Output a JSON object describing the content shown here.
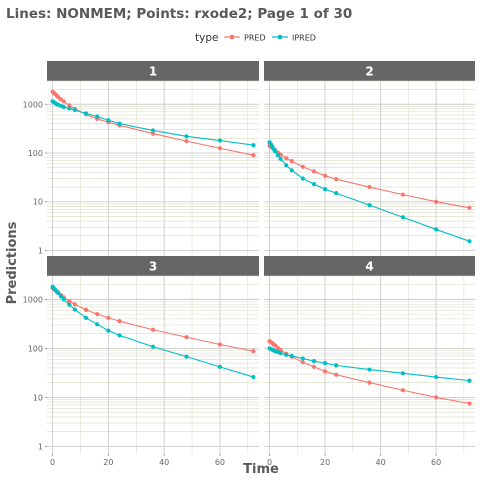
{
  "colors": {
    "strip_bg": "#666666",
    "panel_bg": "#ffffff",
    "grid_major": "#cccccc",
    "grid_minor": "#d8dcc4",
    "pred": "#F8766D",
    "ipred": "#00BFC4",
    "title": "#595959"
  },
  "chart_data": {
    "type": "line",
    "title": "Lines: NONMEM; Points: rxode2; Page 1 of 30",
    "xlabel": "Time",
    "ylabel": "Predictions",
    "y_scale": "log10",
    "xlim": [
      -2,
      74
    ],
    "ylim": [
      0.7,
      3000
    ],
    "x_ticks": [
      0,
      20,
      40,
      60
    ],
    "y_ticks": [
      1,
      10,
      100,
      1000
    ],
    "y_tick_labels": [
      "1",
      "10",
      "100",
      "1000"
    ],
    "grid": true,
    "legend": {
      "title": "type",
      "position": "top",
      "entries": [
        "PRED",
        "IPRED"
      ]
    },
    "panels": [
      {
        "strip": "1",
        "series": [
          {
            "name": "PRED",
            "color": "#F8766D",
            "x": [
              0,
              0.5,
              1,
              1.5,
              2,
              3,
              4,
              6,
              8,
              12,
              16,
              20,
              24,
              36,
              48,
              60,
              72
            ],
            "y": [
              1800,
              1700,
              1600,
              1500,
              1400,
              1250,
              1150,
              950,
              800,
              620,
              500,
              430,
              370,
              250,
              175,
              125,
              90
            ]
          },
          {
            "name": "IPRED",
            "color": "#00BFC4",
            "x": [
              0,
              0.5,
              1,
              1.5,
              2,
              3,
              4,
              6,
              8,
              12,
              16,
              20,
              24,
              36,
              48,
              60,
              72
            ],
            "y": [
              1150,
              1100,
              1050,
              1000,
              980,
              930,
              880,
              820,
              760,
              650,
              560,
              470,
              400,
              290,
              220,
              180,
              145
            ]
          }
        ]
      },
      {
        "strip": "2",
        "series": [
          {
            "name": "PRED",
            "color": "#F8766D",
            "x": [
              0,
              0.5,
              1,
              1.5,
              2,
              3,
              4,
              6,
              8,
              12,
              16,
              20,
              24,
              36,
              48,
              60,
              72
            ],
            "y": [
              140,
              135,
              128,
              120,
              115,
              102,
              93,
              78,
              68,
              52,
              42,
              34,
              29,
              20,
              14,
              10,
              7.5
            ]
          },
          {
            "name": "IPRED",
            "color": "#00BFC4",
            "x": [
              0,
              0.5,
              1,
              1.5,
              2,
              3,
              4,
              6,
              8,
              12,
              16,
              20,
              24,
              36,
              48,
              60,
              72
            ],
            "y": [
              165,
              150,
              135,
              120,
              108,
              90,
              76,
              56,
              44,
              30,
              23,
              18,
              15,
              8.5,
              4.8,
              2.7,
              1.55
            ]
          }
        ]
      },
      {
        "strip": "3",
        "series": [
          {
            "name": "PRED",
            "color": "#F8766D",
            "x": [
              0,
              0.5,
              1,
              1.5,
              2,
              3,
              4,
              6,
              8,
              12,
              16,
              20,
              24,
              36,
              48,
              60,
              72
            ],
            "y": [
              1700,
              1620,
              1540,
              1450,
              1380,
              1230,
              1100,
              920,
              790,
              610,
              500,
              420,
              360,
              240,
              170,
              120,
              88
            ]
          },
          {
            "name": "IPRED",
            "color": "#00BFC4",
            "x": [
              0,
              0.5,
              1,
              1.5,
              2,
              3,
              4,
              6,
              8,
              12,
              16,
              20,
              24,
              36,
              48,
              60,
              72
            ],
            "y": [
              1800,
              1680,
              1560,
              1450,
              1350,
              1150,
              1000,
              780,
              620,
              420,
              310,
              230,
              185,
              108,
              68,
              42,
              26
            ]
          }
        ]
      },
      {
        "strip": "4",
        "series": [
          {
            "name": "PRED",
            "color": "#F8766D",
            "x": [
              0,
              0.5,
              1,
              1.5,
              2,
              3,
              4,
              6,
              8,
              12,
              16,
              20,
              24,
              36,
              48,
              60,
              72
            ],
            "y": [
              140,
              135,
              128,
              120,
              115,
              102,
              93,
              78,
              68,
              52,
              42,
              34,
              29,
              20,
              14,
              10,
              7.5
            ]
          },
          {
            "name": "IPRED",
            "color": "#00BFC4",
            "x": [
              0,
              0.5,
              1,
              1.5,
              2,
              3,
              4,
              6,
              8,
              12,
              16,
              20,
              24,
              36,
              48,
              60,
              72
            ],
            "y": [
              100,
              97,
              94,
              91,
              88,
              84,
              80,
              74,
              70,
              62,
              55,
              50,
              45,
              37,
              31,
              26,
              22
            ]
          }
        ]
      }
    ]
  }
}
